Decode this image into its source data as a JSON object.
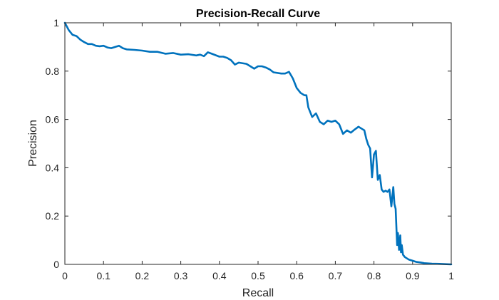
{
  "chart_data": {
    "type": "line",
    "title": "Precision-Recall Curve",
    "xlabel": "Recall",
    "ylabel": "Precision",
    "xlim": [
      0,
      1
    ],
    "ylim": [
      0,
      1
    ],
    "grid": false,
    "legend": null,
    "xticks": [
      "0",
      "0.1",
      "0.2",
      "0.3",
      "0.4",
      "0.5",
      "0.6",
      "0.7",
      "0.8",
      "0.9",
      "1"
    ],
    "yticks": [
      "0",
      "0.2",
      "0.4",
      "0.6",
      "0.8",
      "1"
    ],
    "series": [
      {
        "name": "Precision-Recall",
        "color": "#0072BD",
        "x": [
          0,
          0.01,
          0.02,
          0.03,
          0.04,
          0.05,
          0.06,
          0.07,
          0.08,
          0.09,
          0.1,
          0.11,
          0.12,
          0.13,
          0.14,
          0.15,
          0.16,
          0.18,
          0.2,
          0.22,
          0.24,
          0.26,
          0.28,
          0.3,
          0.32,
          0.34,
          0.35,
          0.36,
          0.37,
          0.38,
          0.4,
          0.41,
          0.42,
          0.43,
          0.44,
          0.45,
          0.47,
          0.48,
          0.49,
          0.5,
          0.51,
          0.52,
          0.53,
          0.54,
          0.56,
          0.57,
          0.58,
          0.59,
          0.6,
          0.61,
          0.62,
          0.625,
          0.63,
          0.64,
          0.65,
          0.66,
          0.67,
          0.68,
          0.69,
          0.7,
          0.71,
          0.72,
          0.73,
          0.74,
          0.75,
          0.76,
          0.77,
          0.775,
          0.78,
          0.785,
          0.79,
          0.795,
          0.8,
          0.805,
          0.81,
          0.815,
          0.82,
          0.825,
          0.83,
          0.835,
          0.84,
          0.845,
          0.85,
          0.853,
          0.856,
          0.86,
          0.862,
          0.865,
          0.868,
          0.87,
          0.872,
          0.875,
          0.88,
          0.89,
          0.9,
          0.91,
          0.92,
          0.93,
          0.95,
          0.97,
          1.0
        ],
        "y": [
          1.0,
          0.97,
          0.95,
          0.945,
          0.93,
          0.92,
          0.912,
          0.912,
          0.905,
          0.903,
          0.905,
          0.898,
          0.895,
          0.9,
          0.905,
          0.895,
          0.89,
          0.888,
          0.885,
          0.88,
          0.88,
          0.872,
          0.875,
          0.868,
          0.87,
          0.865,
          0.868,
          0.862,
          0.878,
          0.872,
          0.86,
          0.86,
          0.855,
          0.845,
          0.827,
          0.835,
          0.83,
          0.82,
          0.81,
          0.82,
          0.82,
          0.815,
          0.807,
          0.795,
          0.79,
          0.79,
          0.797,
          0.77,
          0.73,
          0.71,
          0.7,
          0.7,
          0.65,
          0.61,
          0.625,
          0.59,
          0.58,
          0.595,
          0.59,
          0.595,
          0.58,
          0.54,
          0.555,
          0.545,
          0.558,
          0.57,
          0.56,
          0.555,
          0.52,
          0.495,
          0.48,
          0.36,
          0.455,
          0.47,
          0.35,
          0.37,
          0.31,
          0.3,
          0.305,
          0.3,
          0.31,
          0.24,
          0.32,
          0.25,
          0.23,
          0.08,
          0.13,
          0.06,
          0.12,
          0.05,
          0.08,
          0.04,
          0.03,
          0.02,
          0.015,
          0.01,
          0.008,
          0.005,
          0.003,
          0.002,
          0.0
        ]
      }
    ]
  }
}
